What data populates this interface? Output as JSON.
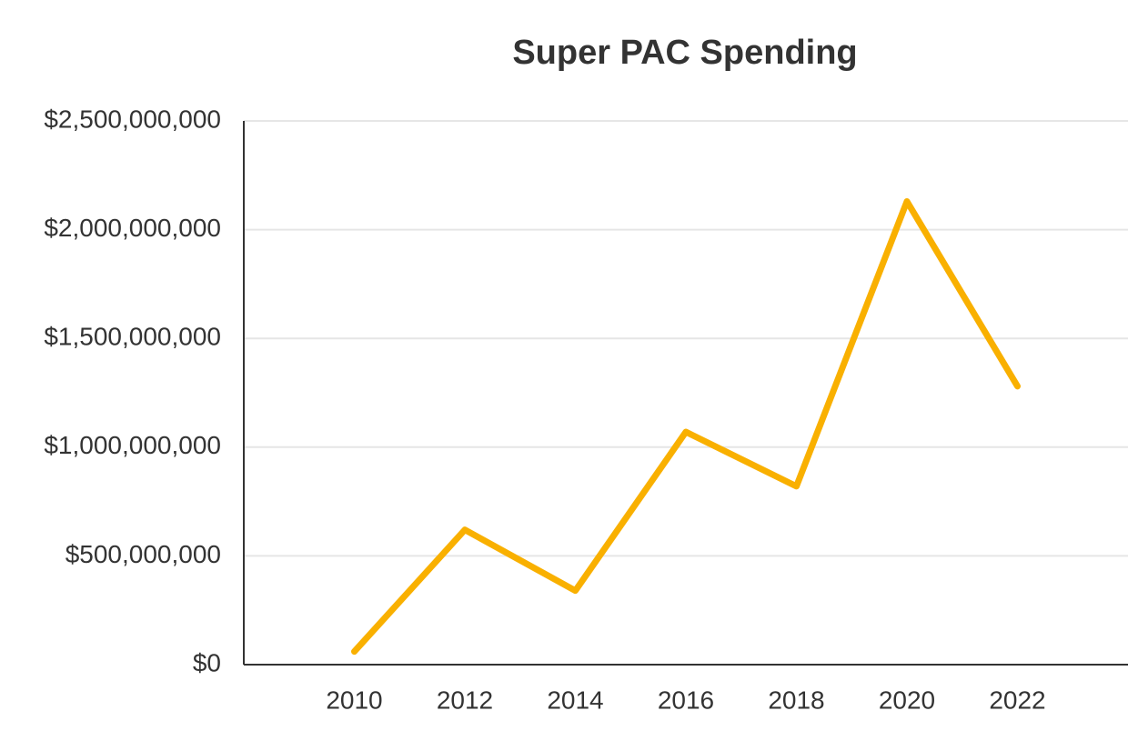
{
  "chart_data": {
    "type": "line",
    "title": "Super PAC Spending",
    "x": [
      2010,
      2012,
      2014,
      2016,
      2018,
      2020,
      2022
    ],
    "values": [
      60000000,
      620000000,
      340000000,
      1070000000,
      820000000,
      2130000000,
      1280000000
    ],
    "color": "#f9b000",
    "xlim": [
      2008,
      2024
    ],
    "xticks": [
      2010,
      2012,
      2014,
      2016,
      2018,
      2020,
      2022
    ],
    "ylim": [
      0,
      2500000000
    ],
    "yticks": [
      {
        "value": 0,
        "label": "$0"
      },
      {
        "value": 500000000,
        "label": "$500,000,000"
      },
      {
        "value": 1000000000,
        "label": "$1,000,000,000"
      },
      {
        "value": 1500000000,
        "label": "$1,500,000,000"
      },
      {
        "value": 2000000000,
        "label": "$2,000,000,000"
      },
      {
        "value": 2500000000,
        "label": "$2,500,000,000"
      }
    ],
    "grid": true
  }
}
